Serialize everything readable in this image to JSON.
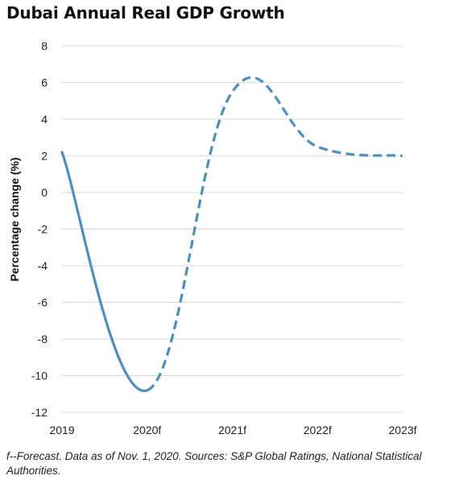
{
  "title": "Dubai Annual Real GDP Growth",
  "footnote": "f--Forecast. Data as of Nov. 1, 2020. Sources: S&P Global Ratings, National Statistical Authorities.",
  "colors": {
    "line": "#4a90c2",
    "grid": "#d9d9d9",
    "text": "#222222"
  },
  "chart_data": {
    "type": "line",
    "title": "Dubai Annual Real GDP Growth",
    "xlabel": "",
    "ylabel": "Percentage change (%)",
    "categories": [
      "2019",
      "2020f",
      "2021f",
      "2022f",
      "2023f"
    ],
    "ylim": [
      -12,
      8
    ],
    "yticks": [
      8,
      6,
      4,
      2,
      0,
      -2,
      -4,
      -6,
      -8,
      -10,
      -12
    ],
    "grid": "horizontal",
    "series": [
      {
        "values": [
          2.2,
          -10.8,
          5.5,
          2.5,
          2.0
        ],
        "actual_through": "2020f",
        "forecast_from": "2020f"
      }
    ]
  }
}
